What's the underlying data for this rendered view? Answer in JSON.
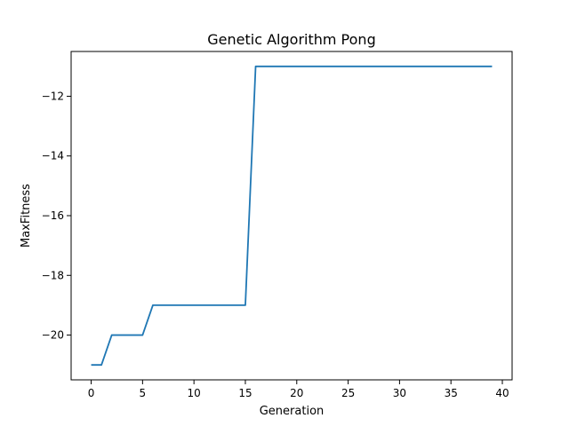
{
  "chart_data": {
    "type": "line",
    "title": "Genetic Algorithm Pong",
    "xlabel": "Generation",
    "ylabel": "MaxFitness",
    "xlim": [
      -1.95,
      40.95
    ],
    "ylim": [
      -21.5,
      -10.5
    ],
    "xticks": [
      0,
      5,
      10,
      15,
      20,
      25,
      30,
      35,
      40
    ],
    "yticks": [
      -20,
      -18,
      -16,
      -14,
      -12
    ],
    "grid": false,
    "legend": "none",
    "series": [
      {
        "color": "#1f77b4",
        "x": [
          0,
          1,
          2,
          3,
          4,
          5,
          6,
          7,
          8,
          9,
          10,
          11,
          12,
          13,
          14,
          15,
          16,
          17,
          18,
          19,
          20,
          21,
          22,
          23,
          24,
          25,
          26,
          27,
          28,
          29,
          30,
          31,
          32,
          33,
          34,
          35,
          36,
          37,
          38,
          39
        ],
        "values": [
          -21,
          -21,
          -20,
          -20,
          -20,
          -20,
          -19,
          -19,
          -19,
          -19,
          -19,
          -19,
          -19,
          -19,
          -19,
          -19,
          -11,
          -11,
          -11,
          -11,
          -11,
          -11,
          -11,
          -11,
          -11,
          -11,
          -11,
          -11,
          -11,
          -11,
          -11,
          -11,
          -11,
          -11,
          -11,
          -11,
          -11,
          -11,
          -11,
          -11
        ]
      }
    ]
  }
}
